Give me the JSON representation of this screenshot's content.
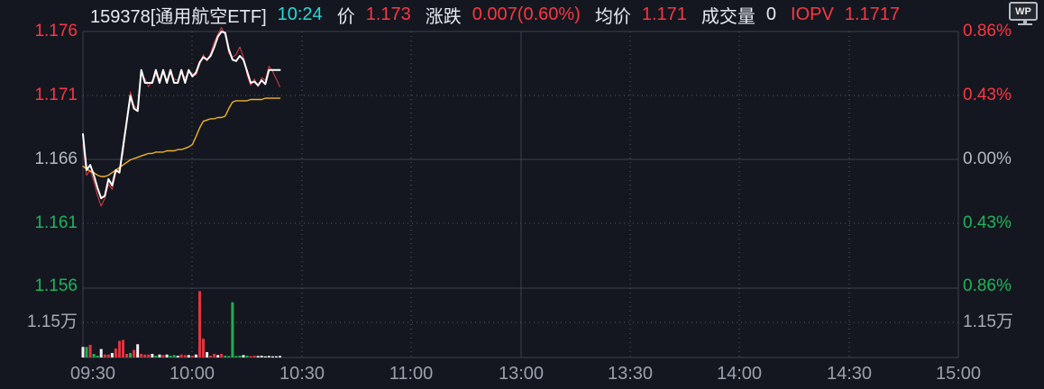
{
  "header": {
    "symbol": "159378[通用航空ETF]",
    "time": "10:24",
    "price_label": "价",
    "price": "1.173",
    "change_label": "涨跌",
    "change": "0.007(0.60%)",
    "avg_label": "均价",
    "avg": "1.171",
    "volume_label": "成交量",
    "volume": "0",
    "iopv_label": "IOPV",
    "iopv": "1.1717",
    "logo": "WP"
  },
  "axes": {
    "left": [
      "1.176",
      "1.171",
      "1.166",
      "1.161",
      "1.156",
      "1.15万"
    ],
    "right": [
      "0.86%",
      "0.43%",
      "0.00%",
      "0.43%",
      "0.86%",
      "1.15万"
    ],
    "bottom": [
      "09:30",
      "10:00",
      "10:30",
      "11:00",
      "13:00",
      "13:30",
      "14:00",
      "14:30",
      "15:00"
    ]
  },
  "colors": {
    "up_red": "#fb3743",
    "down_green": "#21b35c",
    "time_cyan": "#2bd8da",
    "price_line": "#ffffff",
    "avg_line": "#f0b32c",
    "iopv_line": "#e23d47",
    "volume_palette": {
      "r": "#e23440",
      "g": "#1fae54",
      "w": "#f2f2f2"
    }
  },
  "chart_data": {
    "type": "line",
    "title": "159378 通用航空ETF 分时走势 (intraday)",
    "start_time": "09:30",
    "last_update": "10:24",
    "session_minutes": 240,
    "minutes_per_point": 1,
    "prev_close": 1.166,
    "price_axis": {
      "min": 1.156,
      "max": 1.176,
      "ticks": [
        1.176,
        1.171,
        1.166,
        1.161,
        1.156
      ]
    },
    "percent_axis": {
      "ticks": [
        "+0.86%",
        "+0.43%",
        "0.00%",
        "-0.43%",
        "-0.86%"
      ]
    },
    "x_ticks": [
      "09:30",
      "10:00",
      "10:30",
      "11:00",
      "13:00",
      "13:30",
      "14:00",
      "14:30",
      "15:00"
    ],
    "grid": true,
    "legend_position": "none",
    "series": [
      {
        "name": "price",
        "color": "#ffffff",
        "values": [
          1.168,
          1.1652,
          1.1656,
          1.1648,
          1.1638,
          1.163,
          1.1632,
          1.1645,
          1.164,
          1.1652,
          1.165,
          1.167,
          1.169,
          1.171,
          1.17,
          1.1698,
          1.173,
          1.172,
          1.172,
          1.172,
          1.173,
          1.172,
          1.173,
          1.172,
          1.173,
          1.172,
          1.172,
          1.173,
          1.172,
          1.173,
          1.1725,
          1.1728,
          1.1736,
          1.174,
          1.1738,
          1.1741,
          1.1748,
          1.1756,
          1.176,
          1.1759,
          1.1746,
          1.1738,
          1.1737,
          1.1741,
          1.1738,
          1.1729,
          1.172,
          1.1721,
          1.1718,
          1.1722,
          1.1719,
          1.173,
          1.173,
          1.173,
          1.173
        ]
      },
      {
        "name": "avg_price",
        "color": "#f0b32c",
        "values": [
          1.1655,
          1.1653,
          1.1651,
          1.165,
          1.1648,
          1.1647,
          1.1647,
          1.1648,
          1.165,
          1.1652,
          1.1654,
          1.1656,
          1.1658,
          1.166,
          1.1661,
          1.1662,
          1.1663,
          1.1664,
          1.1665,
          1.1665,
          1.1666,
          1.1666,
          1.1666,
          1.1667,
          1.1667,
          1.1667,
          1.1668,
          1.1668,
          1.1669,
          1.167,
          1.1672,
          1.1678,
          1.1685,
          1.169,
          1.1691,
          1.1692,
          1.1692,
          1.1693,
          1.1693,
          1.1694,
          1.17,
          1.1705,
          1.1706,
          1.1706,
          1.1706,
          1.1706,
          1.1707,
          1.1707,
          1.1707,
          1.1707,
          1.1708,
          1.1708,
          1.1708,
          1.1708,
          1.1708
        ]
      },
      {
        "name": "iopv",
        "color": "#e23d47",
        "values": [
          1.1672,
          1.1648,
          1.1652,
          1.1643,
          1.1632,
          1.1624,
          1.163,
          1.1641,
          1.1637,
          1.165,
          1.1653,
          1.1665,
          1.1692,
          1.1713,
          1.1702,
          1.17,
          1.1727,
          1.1723,
          1.1717,
          1.1722,
          1.1726,
          1.1723,
          1.1727,
          1.1722,
          1.1727,
          1.1723,
          1.1722,
          1.1728,
          1.1724,
          1.1728,
          1.1727,
          1.1726,
          1.1734,
          1.1742,
          1.1737,
          1.1743,
          1.1752,
          1.1758,
          1.1763,
          1.1757,
          1.1743,
          1.174,
          1.1742,
          1.1748,
          1.174,
          1.1726,
          1.1718,
          1.1723,
          1.1717,
          1.1724,
          1.1722,
          1.1733,
          1.1729,
          1.1723,
          1.1717
        ]
      }
    ],
    "volume": {
      "unit": "万",
      "axis_mid_label": "1.15万",
      "scale_max": 2.3,
      "values": [
        0.35,
        0.35,
        0.42,
        0.12,
        0.06,
        0.28,
        0.1,
        0.1,
        0.15,
        0.3,
        0.55,
        0.58,
        0.12,
        0.15,
        0.25,
        0.44,
        0.12,
        0.1,
        0.1,
        0.12,
        0.06,
        0.1,
        0.08,
        0.1,
        0.06,
        0.08,
        0.06,
        0.1,
        0.08,
        0.08,
        0.06,
        0.1,
        2.2,
        0.62,
        0.18,
        0.06,
        0.12,
        0.08,
        0.12,
        0.06,
        0.05,
        1.83,
        0.05,
        0.06,
        0.08,
        0.06,
        0.05,
        0.06,
        0.05,
        0.06,
        0.04,
        0.05,
        0.04,
        0.04,
        0.05
      ],
      "colors": [
        "w",
        "g",
        "r",
        "g",
        "g",
        "w",
        "r",
        "r",
        "w",
        "r",
        "r",
        "r",
        "r",
        "g",
        "r",
        "w",
        "r",
        "r",
        "r",
        "w",
        "g",
        "w",
        "r",
        "w",
        "g",
        "g",
        "w",
        "r",
        "r",
        "w",
        "r",
        "w",
        "r",
        "r",
        "w",
        "r",
        "r",
        "w",
        "r",
        "g",
        "g",
        "g",
        "g",
        "g",
        "w",
        "g",
        "r",
        "r",
        "w",
        "w",
        "w",
        "w",
        "w",
        "w",
        "w"
      ]
    }
  }
}
